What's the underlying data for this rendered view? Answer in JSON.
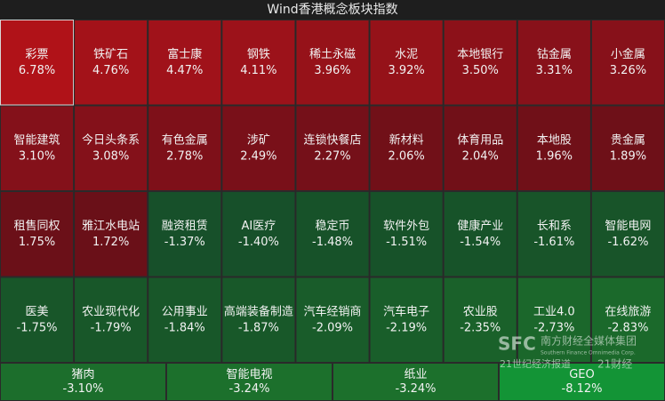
{
  "chart_data": {
    "type": "heatmap",
    "title": "Wind香港概念板块指数",
    "categories": [
      "彩票",
      "铁矿石",
      "富士康",
      "钢铁",
      "稀土永磁",
      "水泥",
      "本地银行",
      "钴金属",
      "小金属",
      "智能建筑",
      "今日头条系",
      "有色金属",
      "涉矿",
      "连锁快餐店",
      "新材料",
      "体育用品",
      "本地股",
      "贵金属",
      "租售同权",
      "雅江水电站",
      "融资租赁",
      "AI医疗",
      "稳定币",
      "软件外包",
      "健康产业",
      "长和系",
      "智能电网",
      "医美",
      "农业现代化",
      "公用事业",
      "高端装备制造",
      "汽车经销商",
      "汽车电子",
      "农业股",
      "工业4.0",
      "在线旅游",
      "猪肉",
      "智能电视",
      "纸业",
      "GEO"
    ],
    "values": [
      6.78,
      4.76,
      4.47,
      4.11,
      3.96,
      3.92,
      3.5,
      3.31,
      3.26,
      3.1,
      3.08,
      2.78,
      2.49,
      2.27,
      2.06,
      2.04,
      1.96,
      1.89,
      1.75,
      1.72,
      -1.37,
      -1.4,
      -1.48,
      -1.51,
      -1.54,
      -1.61,
      -1.62,
      -1.75,
      -1.79,
      -1.84,
      -1.87,
      -2.09,
      -2.19,
      -2.35,
      -2.73,
      -2.83,
      -3.1,
      -3.24,
      -3.24,
      -8.12
    ],
    "value_labels": [
      "6.78%",
      "4.76%",
      "4.47%",
      "4.11%",
      "3.96%",
      "3.92%",
      "3.50%",
      "3.31%",
      "3.26%",
      "3.10%",
      "3.08%",
      "2.78%",
      "2.49%",
      "2.27%",
      "2.06%",
      "2.04%",
      "1.96%",
      "1.89%",
      "1.75%",
      "1.72%",
      "-1.37%",
      "-1.40%",
      "-1.48%",
      "-1.51%",
      "-1.54%",
      "-1.61%",
      "-1.62%",
      "-1.75%",
      "-1.79%",
      "-1.84%",
      "-1.87%",
      "-2.09%",
      "-2.19%",
      "-2.35%",
      "-2.73%",
      "-2.83%",
      "-3.10%",
      "-3.24%",
      "-3.24%",
      "-8.12%"
    ],
    "colors": [
      "#b01218",
      "#a31219",
      "#a0121a",
      "#9c121a",
      "#961219",
      "#951219",
      "#8c1119",
      "#88111a",
      "#87111a",
      "#84111a",
      "#84111a",
      "#7e1019",
      "#791019",
      "#751019",
      "#711018",
      "#711018",
      "#701018",
      "#6e1018",
      "#6b1018",
      "#6a1018",
      "#17502a",
      "#17502a",
      "#175229",
      "#175229",
      "#175329",
      "#185429",
      "#185429",
      "#185629",
      "#185729",
      "#185729",
      "#185829",
      "#195c2a",
      "#195e2a",
      "#1a612a",
      "#1b672b",
      "#1b692b",
      "#1c6e2c",
      "#1c702c",
      "#1c702c",
      "#139436"
    ],
    "watermark": [
      "SFC",
      "南方财经全媒体集团",
      "Southern Finance Omnimedia Corp.",
      "21世纪经济报道",
      "21财经"
    ]
  }
}
